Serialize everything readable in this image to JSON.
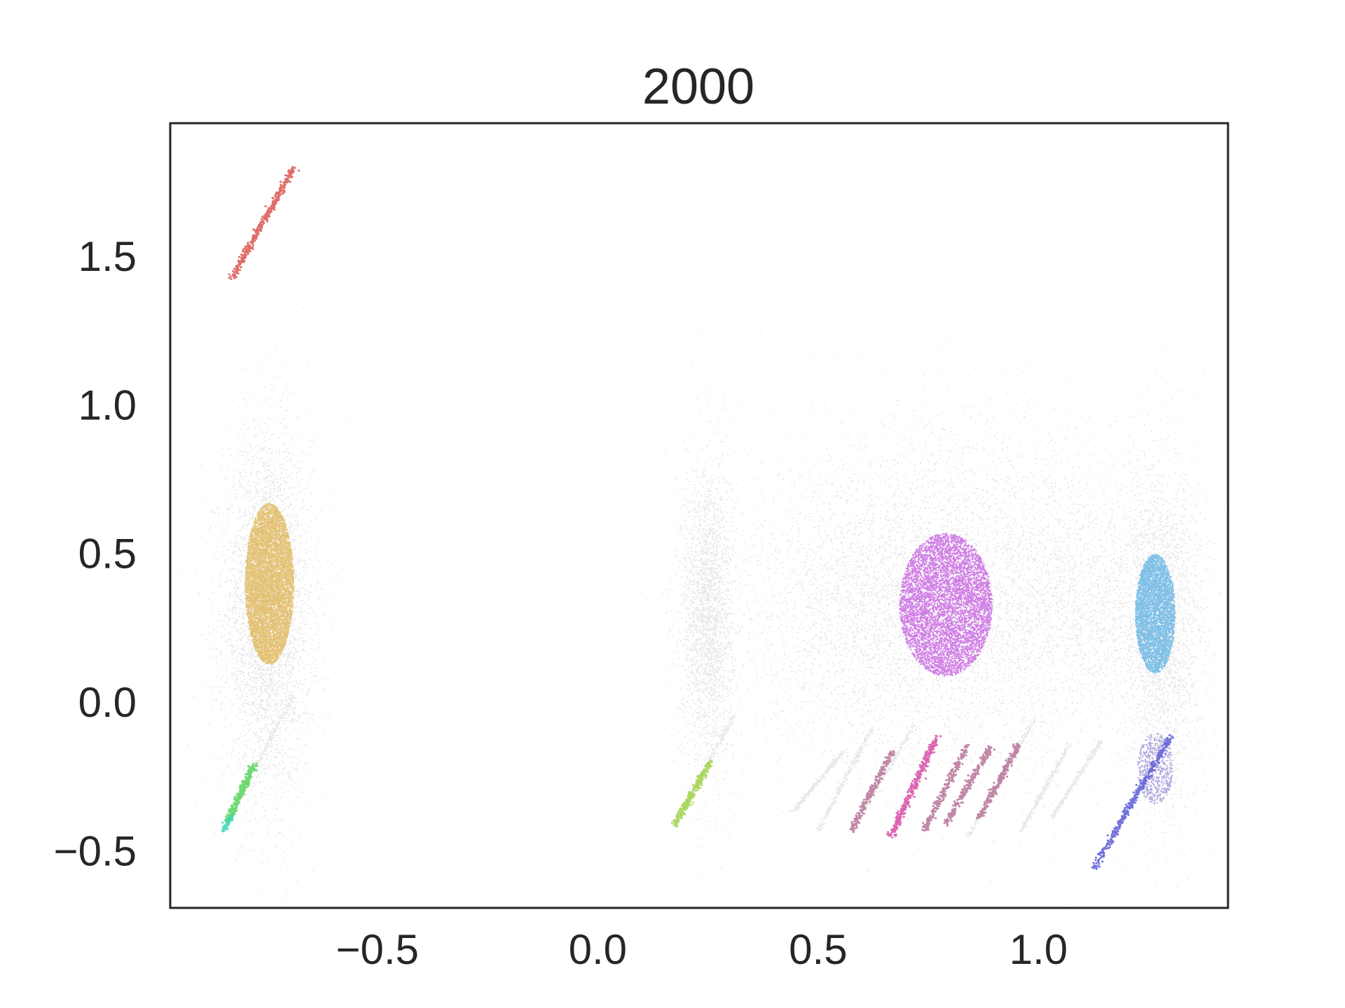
{
  "chart_data": {
    "type": "scatter",
    "title": "2000",
    "xlabel": "",
    "ylabel": "",
    "xlim": [
      -0.97,
      1.43
    ],
    "ylim": [
      -0.69,
      1.95
    ],
    "x_ticks": [
      -0.5,
      0.0,
      0.5,
      1.0
    ],
    "x_tick_labels": [
      "−0.5",
      "0.0",
      "0.5",
      "1.0"
    ],
    "y_ticks": [
      -0.5,
      0.0,
      0.5,
      1.0,
      1.5
    ],
    "y_tick_labels": [
      "−0.5",
      "0.0",
      "0.5",
      "1.0",
      "1.5"
    ],
    "grid": false,
    "legend": "none",
    "background_color": "#d3d3d3",
    "series": [
      {
        "color": "#d9534f",
        "shape": "line",
        "x0": -0.83,
        "y0": 1.43,
        "x1": -0.69,
        "y1": 1.8,
        "n": 400,
        "spread": 0.004
      },
      {
        "color": "#ddb24d",
        "shape": "blob",
        "cx": -0.745,
        "cy": 0.4,
        "rx": 0.055,
        "ry": 0.27,
        "n": 7000
      },
      {
        "color": "#c256dd",
        "shape": "blob",
        "cx": 0.79,
        "cy": 0.33,
        "rx": 0.105,
        "ry": 0.24,
        "n": 6000
      },
      {
        "color": "#5aaee0",
        "shape": "blob",
        "cx": 1.265,
        "cy": 0.3,
        "rx": 0.045,
        "ry": 0.2,
        "n": 4000
      },
      {
        "color": "#9a8ed6",
        "shape": "blob",
        "cx": 1.265,
        "cy": -0.22,
        "rx": 0.04,
        "ry": 0.12,
        "n": 600
      },
      {
        "color": "#56d45a",
        "shape": "line",
        "x0": -0.84,
        "y0": -0.4,
        "x1": -0.78,
        "y1": -0.21,
        "n": 300,
        "spread": 0.004
      },
      {
        "color": "#3cd6b8",
        "shape": "line",
        "x0": -0.85,
        "y0": -0.43,
        "x1": -0.83,
        "y1": -0.38,
        "n": 80,
        "spread": 0.003
      },
      {
        "color": "#9fd44a",
        "shape": "line",
        "x0": 0.175,
        "y0": -0.41,
        "x1": 0.255,
        "y1": -0.2,
        "n": 300,
        "spread": 0.004
      },
      {
        "color": "#d64aa6",
        "shape": "line",
        "x0": 0.665,
        "y0": -0.45,
        "x1": 0.77,
        "y1": -0.11,
        "n": 350,
        "spread": 0.004
      },
      {
        "color": "#b67296",
        "shape": "lines",
        "segments": [
          [
            0.575,
            -0.43,
            0.67,
            -0.16
          ],
          [
            0.74,
            -0.43,
            0.84,
            -0.14
          ],
          [
            0.79,
            -0.41,
            0.89,
            -0.15
          ],
          [
            0.865,
            -0.39,
            0.955,
            -0.14
          ]
        ],
        "n": 250,
        "spread": 0.004
      },
      {
        "color": "#5b5bd6",
        "shape": "line",
        "x0": 1.125,
        "y0": -0.56,
        "x1": 1.3,
        "y1": -0.11,
        "n": 400,
        "spread": 0.004
      }
    ]
  }
}
